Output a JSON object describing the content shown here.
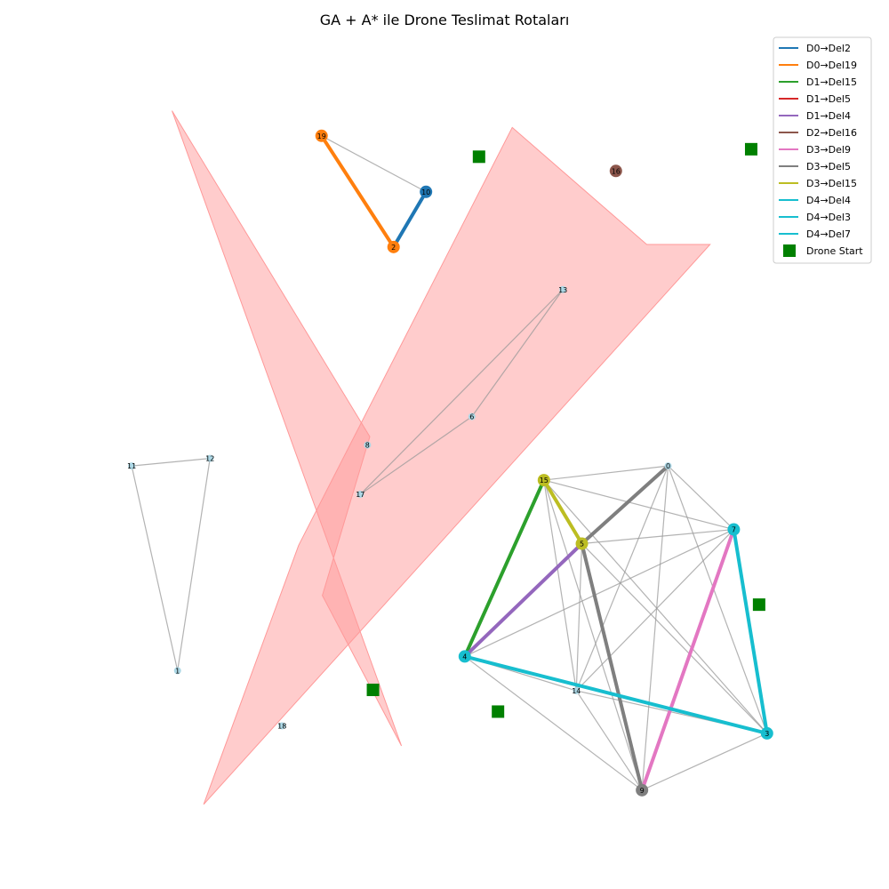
{
  "chart_data": {
    "type": "network",
    "title": "GA + A* ile Drone Teslimat Rotaları",
    "x_range": [
      0,
      100
    ],
    "y_range": [
      0,
      100
    ],
    "grid": false,
    "axes_visible": false,
    "legend_position": "top-right",
    "colors": {
      "no_fly_zone": "#ff9999",
      "graph_edge": "#999999",
      "node_default": "#add8e6",
      "drone_start": "#008000"
    },
    "no_fly_zones": [
      {
        "points": [
          [
            15,
            91
          ],
          [
            40,
            52
          ],
          [
            34,
            33
          ],
          [
            44,
            15
          ]
        ]
      },
      {
        "points": [
          [
            58,
            89
          ],
          [
            75,
            75
          ],
          [
            83,
            75
          ],
          [
            19,
            8
          ],
          [
            31,
            39
          ]
        ]
      }
    ],
    "nodes": [
      {
        "id": "0",
        "x": 77.7,
        "y": 48.5,
        "color": "#add8e6",
        "size": "small"
      },
      {
        "id": "1",
        "x": 15.7,
        "y": 24.0,
        "color": "#add8e6",
        "size": "small"
      },
      {
        "id": "2",
        "x": 43.0,
        "y": 74.7,
        "color": "#ff7f0e",
        "size": "large"
      },
      {
        "id": "3",
        "x": 90.2,
        "y": 16.5,
        "color": "#17becf",
        "size": "large"
      },
      {
        "id": "4",
        "x": 52.0,
        "y": 25.7,
        "color": "#17becf",
        "size": "large"
      },
      {
        "id": "5",
        "x": 66.8,
        "y": 39.2,
        "color": "#bcbd22",
        "size": "large"
      },
      {
        "id": "6",
        "x": 52.9,
        "y": 54.4,
        "color": "#add8e6",
        "size": "small"
      },
      {
        "id": "7",
        "x": 86.0,
        "y": 40.9,
        "color": "#17becf",
        "size": "large"
      },
      {
        "id": "8",
        "x": 39.7,
        "y": 51.0,
        "color": "#add8e6",
        "size": "small"
      },
      {
        "id": "9",
        "x": 74.4,
        "y": 9.7,
        "color": "#7f7f7f",
        "size": "large"
      },
      {
        "id": "10",
        "x": 47.1,
        "y": 81.3,
        "color": "#1f77b4",
        "size": "large"
      },
      {
        "id": "11",
        "x": 9.9,
        "y": 48.5,
        "color": "#add8e6",
        "size": "small"
      },
      {
        "id": "12",
        "x": 19.8,
        "y": 49.4,
        "color": "#add8e6",
        "size": "small"
      },
      {
        "id": "13",
        "x": 64.4,
        "y": 69.6,
        "color": "#add8e6",
        "size": "small"
      },
      {
        "id": "14",
        "x": 66.1,
        "y": 21.6,
        "color": "#add8e6",
        "size": "small"
      },
      {
        "id": "15",
        "x": 62.0,
        "y": 46.8,
        "color": "#bcbd22",
        "size": "large"
      },
      {
        "id": "16",
        "x": 71.1,
        "y": 83.8,
        "color": "#8c564b",
        "size": "large"
      },
      {
        "id": "17",
        "x": 38.8,
        "y": 45.1,
        "color": "#add8e6",
        "size": "small"
      },
      {
        "id": "18",
        "x": 28.9,
        "y": 17.4,
        "color": "#add8e6",
        "size": "small"
      },
      {
        "id": "19",
        "x": 33.9,
        "y": 88.0,
        "color": "#ff7f0e",
        "size": "large"
      }
    ],
    "edges": [
      [
        "19",
        "10"
      ],
      [
        "13",
        "17"
      ],
      [
        "13",
        "6"
      ],
      [
        "6",
        "17"
      ],
      [
        "11",
        "12"
      ],
      [
        "11",
        "1"
      ],
      [
        "12",
        "1"
      ],
      [
        "15",
        "0"
      ],
      [
        "15",
        "7"
      ],
      [
        "15",
        "14"
      ],
      [
        "15",
        "9"
      ],
      [
        "15",
        "3"
      ],
      [
        "15",
        "5"
      ],
      [
        "0",
        "5"
      ],
      [
        "0",
        "14"
      ],
      [
        "0",
        "9"
      ],
      [
        "0",
        "3"
      ],
      [
        "0",
        "7"
      ],
      [
        "5",
        "7"
      ],
      [
        "5",
        "14"
      ],
      [
        "5",
        "3"
      ],
      [
        "5",
        "9"
      ],
      [
        "4",
        "7"
      ],
      [
        "4",
        "14"
      ],
      [
        "4",
        "9"
      ],
      [
        "4",
        "3"
      ],
      [
        "7",
        "14"
      ],
      [
        "7",
        "9"
      ],
      [
        "7",
        "3"
      ],
      [
        "14",
        "9"
      ],
      [
        "14",
        "3"
      ],
      [
        "9",
        "3"
      ]
    ],
    "routes": [
      {
        "name": "D0→Del2",
        "color": "#1f77b4",
        "path": [
          "10",
          "2"
        ]
      },
      {
        "name": "D0→Del19",
        "color": "#ff7f0e",
        "path": [
          "2",
          "19"
        ]
      },
      {
        "name": "D1→Del15",
        "color": "#2ca02c",
        "path": [
          "4",
          "15"
        ]
      },
      {
        "name": "D1→Del5",
        "color": "#d62728",
        "path": []
      },
      {
        "name": "D1→Del4",
        "color": "#9467bd",
        "path": [
          "5",
          "4"
        ]
      },
      {
        "name": "D2→Del16",
        "color": "#8c564b",
        "path": []
      },
      {
        "name": "D3→Del9",
        "color": "#e377c2",
        "path": [
          "7",
          "9"
        ]
      },
      {
        "name": "D3→Del5",
        "color": "#7f7f7f",
        "path": [
          "9",
          "5",
          "0"
        ]
      },
      {
        "name": "D3→Del15",
        "color": "#bcbd22",
        "path": [
          "15",
          "5"
        ]
      },
      {
        "name": "D4→Del4",
        "color": "#17becf",
        "path": [
          "3",
          "4"
        ]
      },
      {
        "name": "D4→Del3",
        "color": "#17becf",
        "path": [
          "7",
          "3"
        ]
      },
      {
        "name": "D4→Del7",
        "color": "#17becf",
        "path": []
      }
    ],
    "drone_starts": {
      "name": "Drone Start",
      "color": "#008000",
      "points": [
        [
          53.8,
          85.5
        ],
        [
          40.4,
          21.7
        ],
        [
          56.2,
          19.1
        ],
        [
          89.2,
          31.9
        ],
        [
          88.2,
          86.4
        ]
      ]
    }
  }
}
